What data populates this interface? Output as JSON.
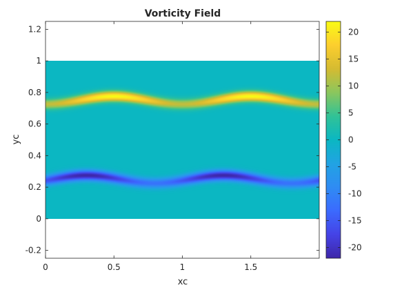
{
  "chart_data": {
    "type": "heatmap",
    "title": "Vorticity Field",
    "xlabel": "xc",
    "ylabel": "yc",
    "xlim": [
      0,
      2
    ],
    "ylim": [
      -0.25,
      1.25
    ],
    "domain": {
      "x": [
        0,
        2
      ],
      "y": [
        0,
        1
      ]
    },
    "x_ticks": [
      {
        "value": 0,
        "label": "0"
      },
      {
        "value": 0.5,
        "label": "0.5"
      },
      {
        "value": 1,
        "label": "1"
      },
      {
        "value": 1.5,
        "label": "1.5"
      }
    ],
    "y_ticks": [
      {
        "value": -0.2,
        "label": "-0.2"
      },
      {
        "value": 0,
        "label": "0"
      },
      {
        "value": 0.2,
        "label": "0.2"
      },
      {
        "value": 0.4,
        "label": "0.4"
      },
      {
        "value": 0.6,
        "label": "0.6"
      },
      {
        "value": 0.8,
        "label": "0.8"
      },
      {
        "value": 1,
        "label": "1"
      },
      {
        "value": 1.2,
        "label": "1.2"
      }
    ],
    "colorbar": {
      "range": [
        -22,
        22
      ],
      "colormap": "parula",
      "ticks": [
        {
          "value": 20,
          "label": "20"
        },
        {
          "value": 15,
          "label": "15"
        },
        {
          "value": 10,
          "label": "10"
        },
        {
          "value": 5,
          "label": "5"
        },
        {
          "value": 0,
          "label": "0"
        },
        {
          "value": -5,
          "label": "-5"
        },
        {
          "value": -10,
          "label": "-10"
        },
        {
          "value": -15,
          "label": "-15"
        },
        {
          "value": -20,
          "label": "-20"
        }
      ]
    },
    "field": {
      "background_value": 0,
      "bands": [
        {
          "center_y": 0.75,
          "wave_amplitude": 0.025,
          "wavelength": 1,
          "peak_value": 22,
          "peak_x": [
            0.5,
            1.5
          ],
          "min_value": 12
        },
        {
          "center_y": 0.25,
          "wave_amplitude": 0.025,
          "wavelength": 1,
          "peak_value": -22,
          "peak_x": [
            0.3,
            1.3
          ],
          "min_value": -12
        }
      ]
    },
    "grid": false,
    "colors": {
      "axis": "#262626",
      "background": "#ffffff"
    }
  }
}
